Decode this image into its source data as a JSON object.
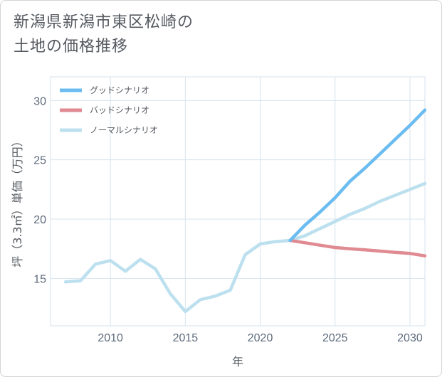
{
  "title_lines": [
    "新潟県新潟市東区松崎の",
    "土地の価格推移"
  ],
  "colors": {
    "good": "#6bbcf0",
    "bad": "#e08a92",
    "normal": "#bde0ef",
    "grid": "#d6e3ee",
    "tick": "#5d6b7c"
  },
  "chart_data": {
    "type": "line",
    "title": "新潟県新潟市東区松崎の土地の価格推移",
    "xlabel": "年",
    "ylabel": "坪（3.3㎡）単価（万円）",
    "xlim": [
      2006,
      2031
    ],
    "ylim": [
      11,
      32
    ],
    "x_ticks": [
      2010,
      2015,
      2020,
      2025,
      2030
    ],
    "y_ticks": [
      15,
      20,
      25,
      30
    ],
    "grid": true,
    "legend_position": "top-left",
    "series": [
      {
        "name": "グッドシナリオ",
        "color": "#6bbcf0",
        "x": [
          2022,
          2023,
          2024,
          2025,
          2026,
          2027,
          2028,
          2029,
          2030,
          2031
        ],
        "y": [
          18.2,
          19.5,
          20.6,
          21.8,
          23.2,
          24.3,
          25.5,
          26.7,
          27.9,
          29.2
        ]
      },
      {
        "name": "バッドシナリオ",
        "color": "#e08a92",
        "x": [
          2022,
          2023,
          2024,
          2025,
          2026,
          2027,
          2028,
          2029,
          2030,
          2031
        ],
        "y": [
          18.2,
          18.0,
          17.8,
          17.6,
          17.5,
          17.4,
          17.3,
          17.2,
          17.1,
          16.9
        ]
      },
      {
        "name": "ノーマルシナリオ",
        "color": "#bde0ef",
        "x": [
          2007,
          2008,
          2009,
          2010,
          2011,
          2012,
          2013,
          2014,
          2015,
          2016,
          2017,
          2018,
          2019,
          2020,
          2021,
          2022,
          2023,
          2024,
          2025,
          2026,
          2027,
          2028,
          2029,
          2030,
          2031
        ],
        "y": [
          14.7,
          14.8,
          16.2,
          16.5,
          15.6,
          16.6,
          15.8,
          13.7,
          12.2,
          13.2,
          13.5,
          14.0,
          17.0,
          17.9,
          18.1,
          18.2,
          18.6,
          19.2,
          19.8,
          20.4,
          20.9,
          21.5,
          22.0,
          22.5,
          23.0
        ]
      }
    ]
  }
}
